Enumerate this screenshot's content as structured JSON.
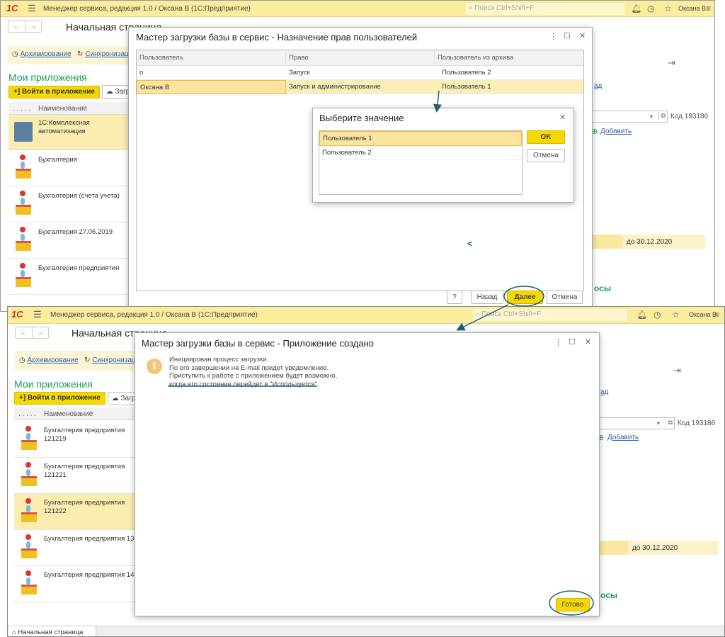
{
  "app": {
    "title": "Менеджер сервиса, редакция 1.0 / Оксана В   (1С:Предприятие)",
    "logo": "1С",
    "search_placeholder": "Поиск Ctrl+Shift+F",
    "user": "Оксана В",
    "page_title": "Начальная страница",
    "nav_back": "←",
    "nav_forward": "→",
    "links": [
      "Архивирование",
      "Синхронизаци"
    ],
    "section_title": "Мои приложения",
    "enter_button": "Войти в приложение",
    "upload_button_partial": "Загр",
    "list_header_dots": ". . . . .",
    "list_header_name": "Наименование",
    "right_link_partial": "ад",
    "code_label": "Код 193186",
    "add_link": "Добавить",
    "date_until": "до 30.12.2020",
    "section_partial": "осы",
    "bottom_tab": "Начальная страница",
    "accent": "#f5d800",
    "header_bg": "#fbed9e"
  },
  "top_window": {
    "apps": [
      "1С:Комплексная автоматизация",
      "Бухгалтерия",
      "Бухгалтерия (счета учета)",
      "Бухгалтерия 27.06.2019",
      "Бухгалтерия предприятия"
    ],
    "dialog": {
      "title": "Мастер загрузки базы в сервис - Назначение прав пользователей",
      "columns": [
        "Пользователь",
        "Право",
        "Пользователь из архива"
      ],
      "rows": [
        [
          "о",
          "Запуск",
          "Пользователь 2"
        ],
        [
          "Оксана В",
          "Запуск и администрирование",
          "Пользователь 1"
        ]
      ],
      "stray_char": "<",
      "help_button": "?",
      "back_button": "Назад",
      "next_button": "Далее",
      "cancel_button": "Отмена"
    },
    "choose_dialog": {
      "title": "Выберите значение",
      "options": [
        "Пользователь 1",
        "Пользователь 2"
      ],
      "ok_button": "OK",
      "cancel_button": "Отмена"
    }
  },
  "bottom_window": {
    "apps": [
      "Бухгалтерия предприятия 121219",
      "Бухгалтерия предприятия 121221",
      "Бухгалтерия предприятия 121222",
      "Бухгалтерия предприятия 13",
      "Бухгалтерия предприятия 14"
    ],
    "dialog": {
      "title": "Мастер загрузки базы в сервис - Приложение создано",
      "message_lines": [
        "Инициирован процесс загрузки.",
        "По его завершении на E-mail придет уведомление.",
        "Приступить к работе с приложением будет возможно,",
        "когда его состояние перейдет в \"Используется\"."
      ],
      "done_button": "Готово"
    }
  },
  "annotation_color": "#1f5f6e"
}
